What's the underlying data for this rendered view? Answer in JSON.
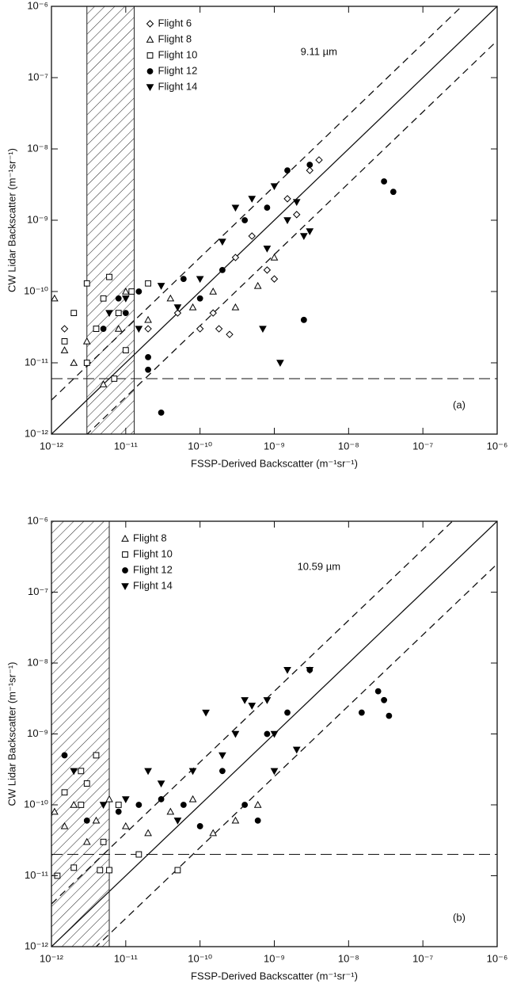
{
  "chart_data": [
    {
      "type": "scatter",
      "xlabel": "FSSP-Derived Backscatter (m⁻¹sr⁻¹)",
      "ylabel": "CW Lidar Backscatter (m⁻¹sr⁻¹)",
      "annotation": "9.11 µm",
      "panel_label": "(a)",
      "log_x": true,
      "log_y": true,
      "legend": "upper left",
      "xlim": [
        1e-12,
        1e-06
      ],
      "ylim": [
        1e-12,
        1e-06
      ],
      "xticks": [
        {
          "value": 1e-12,
          "label": "10⁻¹²"
        },
        {
          "value": 1e-11,
          "label": "10⁻¹¹"
        },
        {
          "value": 1e-10,
          "label": "10⁻¹⁰"
        },
        {
          "value": 1e-09,
          "label": "10⁻⁹"
        },
        {
          "value": 1e-08,
          "label": "10⁻⁸"
        },
        {
          "value": 1e-07,
          "label": "10⁻⁷"
        },
        {
          "value": 1e-06,
          "label": "10⁻⁶"
        }
      ],
      "yticks": [
        {
          "value": 1e-12,
          "label": "10⁻¹²"
        },
        {
          "value": 1e-11,
          "label": "10⁻¹¹"
        },
        {
          "value": 1e-10,
          "label": "10⁻¹⁰"
        },
        {
          "value": 1e-09,
          "label": "10⁻⁹"
        },
        {
          "value": 1e-08,
          "label": "10⁻⁸"
        },
        {
          "value": 1e-07,
          "label": "10⁻⁷"
        },
        {
          "value": 1e-06,
          "label": "10⁻⁶"
        }
      ],
      "reference_lines": [
        {
          "factor": 1,
          "style": "solid"
        },
        {
          "factor": 3,
          "style": "dashed"
        },
        {
          "factor": 0.33,
          "style": "dashed"
        }
      ],
      "y_threshold": 6e-12,
      "hatch_x": [
        3e-12,
        1.3e-11
      ],
      "series": [
        {
          "name": "Flight 6",
          "color": "#000000",
          "marker": "diamond",
          "filled": false,
          "x": [
            1.5e-12,
            2e-11,
            5e-11,
            1e-10,
            1.5e-10,
            3e-10,
            5e-10,
            8e-10,
            1e-09,
            1.5e-09,
            2e-09,
            3e-09,
            4e-09,
            1.8e-10,
            2.5e-10
          ],
          "values": [
            3e-11,
            3e-11,
            5e-11,
            3e-11,
            5e-11,
            3e-10,
            6e-10,
            2e-10,
            1.5e-10,
            2e-09,
            1.2e-09,
            5e-09,
            7e-09,
            3e-11,
            2.5e-11
          ]
        },
        {
          "name": "Flight 8",
          "color": "#000000",
          "marker": "triangle",
          "filled": false,
          "x": [
            1.1e-12,
            1.5e-12,
            2e-12,
            3e-12,
            5e-12,
            8e-12,
            1e-11,
            2e-11,
            4e-11,
            8e-11,
            1.5e-10,
            3e-10,
            6e-10,
            1e-09
          ],
          "values": [
            8e-11,
            1.5e-11,
            1e-11,
            2e-11,
            5e-12,
            3e-11,
            1e-10,
            4e-11,
            8e-11,
            6e-11,
            1e-10,
            6e-11,
            1.2e-10,
            3e-10
          ]
        },
        {
          "name": "Flight 10",
          "color": "#000000",
          "marker": "square",
          "filled": false,
          "x": [
            1.5e-12,
            2e-12,
            3e-12,
            4e-12,
            5e-12,
            6e-12,
            8e-12,
            1e-11,
            1.2e-11,
            3e-12,
            7e-12,
            2e-11
          ],
          "values": [
            2e-11,
            5e-11,
            1.3e-10,
            3e-11,
            8e-11,
            1.6e-10,
            5e-11,
            1.5e-11,
            1e-10,
            1e-11,
            6e-12,
            1.3e-10
          ]
        },
        {
          "name": "Flight 12",
          "color": "#000000",
          "marker": "circle",
          "filled": true,
          "x": [
            5e-12,
            8e-12,
            1e-11,
            1.5e-11,
            2e-11,
            3e-11,
            6e-11,
            1e-10,
            2e-10,
            4e-10,
            8e-10,
            1.5e-09,
            3e-09,
            3e-08,
            4e-08,
            2.5e-09,
            2e-11
          ],
          "values": [
            3e-11,
            8e-11,
            5e-11,
            1e-10,
            1.2e-11,
            2e-12,
            1.5e-10,
            8e-11,
            2e-10,
            1e-09,
            1.5e-09,
            5e-09,
            6e-09,
            3.5e-09,
            2.5e-09,
            4e-11,
            8e-12
          ]
        },
        {
          "name": "Flight 14",
          "color": "#000000",
          "marker": "triangle-down",
          "filled": true,
          "x": [
            6e-12,
            1e-11,
            1.5e-11,
            3e-11,
            5e-11,
            1e-10,
            2e-10,
            3e-10,
            5e-10,
            8e-10,
            1e-09,
            1.5e-09,
            2e-09,
            3e-09,
            1.2e-09,
            7e-10,
            2.5e-09
          ],
          "values": [
            5e-11,
            8e-11,
            3e-11,
            1.2e-10,
            6e-11,
            1.5e-10,
            5e-10,
            1.5e-09,
            2e-09,
            4e-10,
            3e-09,
            1e-09,
            1.8e-09,
            7e-10,
            1e-11,
            3e-11,
            6e-10
          ]
        }
      ]
    },
    {
      "type": "scatter",
      "xlabel": "FSSP-Derived Backscatter (m⁻¹sr⁻¹)",
      "ylabel": "CW Lidar Backscatter (m⁻¹sr⁻¹)",
      "annotation": "10.59 µm",
      "panel_label": "(b)",
      "log_x": true,
      "log_y": true,
      "legend": "upper left",
      "xlim": [
        1e-12,
        1e-06
      ],
      "ylim": [
        1e-12,
        1e-06
      ],
      "xticks": [
        {
          "value": 1e-12,
          "label": "10⁻¹²"
        },
        {
          "value": 1e-11,
          "label": "10⁻¹¹"
        },
        {
          "value": 1e-10,
          "label": "10⁻¹⁰"
        },
        {
          "value": 1e-09,
          "label": "10⁻⁹"
        },
        {
          "value": 1e-08,
          "label": "10⁻⁸"
        },
        {
          "value": 1e-07,
          "label": "10⁻⁷"
        },
        {
          "value": 1e-06,
          "label": "10⁻⁶"
        }
      ],
      "yticks": [
        {
          "value": 1e-12,
          "label": "10⁻¹²"
        },
        {
          "value": 1e-11,
          "label": "10⁻¹¹"
        },
        {
          "value": 1e-10,
          "label": "10⁻¹⁰"
        },
        {
          "value": 1e-09,
          "label": "10⁻⁹"
        },
        {
          "value": 1e-08,
          "label": "10⁻⁸"
        },
        {
          "value": 1e-07,
          "label": "10⁻⁷"
        },
        {
          "value": 1e-06,
          "label": "10⁻⁶"
        }
      ],
      "reference_lines": [
        {
          "factor": 1,
          "style": "solid"
        },
        {
          "factor": 4,
          "style": "dashed"
        },
        {
          "factor": 0.25,
          "style": "dashed"
        }
      ],
      "y_threshold": 2e-11,
      "hatch_x": [
        1e-12,
        6e-12
      ],
      "series": [
        {
          "name": "Flight 8",
          "color": "#000000",
          "marker": "triangle",
          "filled": false,
          "x": [
            1.1e-12,
            1.5e-12,
            2e-12,
            3e-12,
            4e-12,
            6e-12,
            1e-11,
            2e-11,
            4e-11,
            8e-11,
            1.5e-10,
            3e-10,
            6e-10
          ],
          "values": [
            8e-11,
            5e-11,
            1e-10,
            3e-11,
            6e-11,
            1.2e-10,
            5e-11,
            4e-11,
            8e-11,
            1.2e-10,
            4e-11,
            6e-11,
            1e-10
          ]
        },
        {
          "name": "Flight 10",
          "color": "#000000",
          "marker": "square",
          "filled": false,
          "x": [
            1.2e-12,
            1.5e-12,
            2e-12,
            2.5e-12,
            3e-12,
            4e-12,
            5e-12,
            6e-12,
            8e-12,
            1.5e-11,
            5e-11,
            2.5e-12,
            4.5e-12
          ],
          "values": [
            1e-11,
            1.5e-10,
            1.3e-11,
            1e-10,
            2e-10,
            5e-10,
            3e-11,
            1.2e-11,
            1e-10,
            2e-11,
            1.2e-11,
            3e-10,
            1.2e-11
          ]
        },
        {
          "name": "Flight 12",
          "color": "#000000",
          "marker": "circle",
          "filled": true,
          "x": [
            1.5e-12,
            3e-12,
            8e-12,
            1.5e-11,
            3e-11,
            6e-11,
            1e-10,
            2e-10,
            4e-10,
            8e-10,
            1.5e-09,
            3e-09,
            1.5e-08,
            2.5e-08,
            3e-08,
            3.5e-08,
            6e-10
          ],
          "values": [
            5e-10,
            6e-11,
            8e-11,
            1e-10,
            1.2e-10,
            1e-10,
            5e-11,
            3e-10,
            1e-10,
            1e-09,
            2e-09,
            8e-09,
            2e-09,
            4e-09,
            3e-09,
            1.8e-09,
            6e-11
          ]
        },
        {
          "name": "Flight 14",
          "color": "#000000",
          "marker": "triangle-down",
          "filled": true,
          "x": [
            2e-12,
            5e-12,
            1e-11,
            2e-11,
            3e-11,
            5e-11,
            8e-11,
            1.2e-10,
            2e-10,
            3e-10,
            5e-10,
            8e-10,
            1e-09,
            1.5e-09,
            2e-09,
            3e-09,
            1e-09,
            4e-10
          ],
          "values": [
            3e-10,
            1e-10,
            1.2e-10,
            3e-10,
            2e-10,
            6e-11,
            3e-10,
            2e-09,
            5e-10,
            1e-09,
            2.5e-09,
            3e-09,
            1e-09,
            8e-09,
            6e-10,
            8e-09,
            3e-10,
            3e-09
          ]
        }
      ]
    }
  ]
}
